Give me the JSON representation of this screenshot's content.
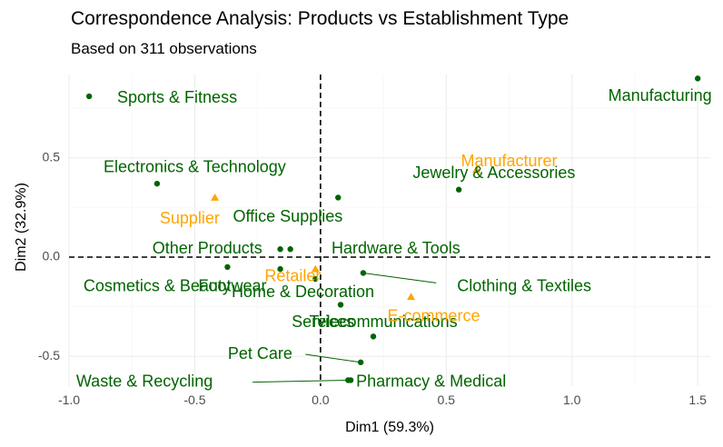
{
  "title": "Correspondence Analysis: Products vs Establishment Type",
  "subtitle": "Based on 311 observations",
  "chart_data": {
    "type": "scatter",
    "xlabel": "Dim1 (59.3%)",
    "ylabel": "Dim2 (32.9%)",
    "xlim": [
      -1.0,
      1.55
    ],
    "ylim": [
      -0.65,
      0.92
    ],
    "x_ticks": [
      -1.0,
      -0.5,
      0.0,
      0.5,
      1.0,
      1.5
    ],
    "x_tick_labels": [
      "-1.0",
      "-0.5",
      "0.0",
      "0.5",
      "1.0",
      "1.5"
    ],
    "y_ticks": [
      -0.5,
      0.0,
      0.5
    ],
    "y_tick_labels": [
      "-0.5",
      "0.0",
      "0.5"
    ],
    "grid": true,
    "reference_lines": {
      "x": 0,
      "y": 0,
      "style": "dashed"
    },
    "colors": {
      "row": "#006400",
      "column": "#FFA500"
    },
    "series": [
      {
        "group": "row",
        "marker": "circle",
        "color": "#006400",
        "points": [
          {
            "label": "Sports & Fitness",
            "x": -0.92,
            "y": 0.81,
            "lx": -0.57,
            "ly": 0.8,
            "anchor": "middle"
          },
          {
            "label": "Electronics & Technology",
            "x": -0.65,
            "y": 0.37,
            "lx": -0.5,
            "ly": 0.45,
            "anchor": "middle"
          },
          {
            "label": "Manufacturing",
            "x": 1.5,
            "y": 0.9,
            "lx": 1.35,
            "ly": 0.81,
            "anchor": "middle"
          },
          {
            "label": "Jewelry & Accessories",
            "x": 0.55,
            "y": 0.34,
            "lx": 0.69,
            "ly": 0.42,
            "anchor": "middle"
          },
          {
            "label": "Office Supplies",
            "x": 0.07,
            "y": 0.3,
            "lx": -0.13,
            "ly": 0.2,
            "anchor": "middle"
          },
          {
            "label": "Other Products",
            "x": -0.16,
            "y": 0.04,
            "lx": -0.45,
            "ly": 0.04,
            "anchor": "middle"
          },
          {
            "label": "Hardware & Tools",
            "x": -0.12,
            "y": 0.04,
            "lx": 0.3,
            "ly": 0.04,
            "anchor": "middle"
          },
          {
            "label": "Cosmetics & Beauty",
            "x": -0.37,
            "y": -0.05,
            "lx": -0.65,
            "ly": -0.15,
            "anchor": "middle"
          },
          {
            "label": "Footwear",
            "x": -0.16,
            "y": -0.06,
            "lx": -0.35,
            "ly": -0.15,
            "anchor": "middle"
          },
          {
            "label": "Home & Decoration",
            "x": -0.02,
            "y": -0.11,
            "lx": -0.07,
            "ly": -0.18,
            "anchor": "middle"
          },
          {
            "label": "Clothing & Textiles",
            "x": 0.17,
            "y": -0.08,
            "lx": 0.81,
            "ly": -0.15,
            "anchor": "middle"
          },
          {
            "label": "Services",
            "x": 0.08,
            "y": -0.24,
            "lx": 0.01,
            "ly": -0.33,
            "anchor": "middle"
          },
          {
            "label": "Telecommunications",
            "x": 0.21,
            "y": -0.4,
            "lx": 0.25,
            "ly": -0.33,
            "anchor": "middle"
          },
          {
            "label": "Pet Care",
            "x": 0.16,
            "y": -0.53,
            "lx": -0.24,
            "ly": -0.49,
            "anchor": "middle"
          },
          {
            "label": "Waste & Recycling",
            "x": 0.11,
            "y": -0.62,
            "lx": -0.7,
            "ly": -0.63,
            "anchor": "middle"
          },
          {
            "label": "Pharmacy & Medical",
            "x": 0.12,
            "y": -0.62,
            "lx": 0.44,
            "ly": -0.63,
            "anchor": "middle"
          }
        ]
      },
      {
        "group": "column",
        "marker": "triangle",
        "color": "#FFA500",
        "points": [
          {
            "label": "Manufacturer",
            "x": 0.62,
            "y": 0.44,
            "lx": 0.75,
            "ly": 0.48,
            "anchor": "middle"
          },
          {
            "label": "Supplier",
            "x": -0.42,
            "y": 0.3,
            "lx": -0.52,
            "ly": 0.19,
            "anchor": "middle"
          },
          {
            "label": "Retailer",
            "x": -0.02,
            "y": -0.06,
            "lx": -0.11,
            "ly": -0.1,
            "anchor": "middle"
          },
          {
            "label": "E-commerce",
            "x": 0.36,
            "y": -0.2,
            "lx": 0.45,
            "ly": -0.3,
            "anchor": "middle"
          }
        ]
      }
    ],
    "leaders": [
      {
        "from_label": "Clothing & Textiles",
        "x1": 0.17,
        "y1": -0.08,
        "x2": 0.46,
        "y2": -0.13
      },
      {
        "from_label": "Pet Care",
        "x1": 0.16,
        "y1": -0.53,
        "x2": -0.06,
        "y2": -0.49
      },
      {
        "from_label": "Waste & Recycling",
        "x1": 0.11,
        "y1": -0.62,
        "x2": -0.27,
        "y2": -0.63
      }
    ]
  }
}
